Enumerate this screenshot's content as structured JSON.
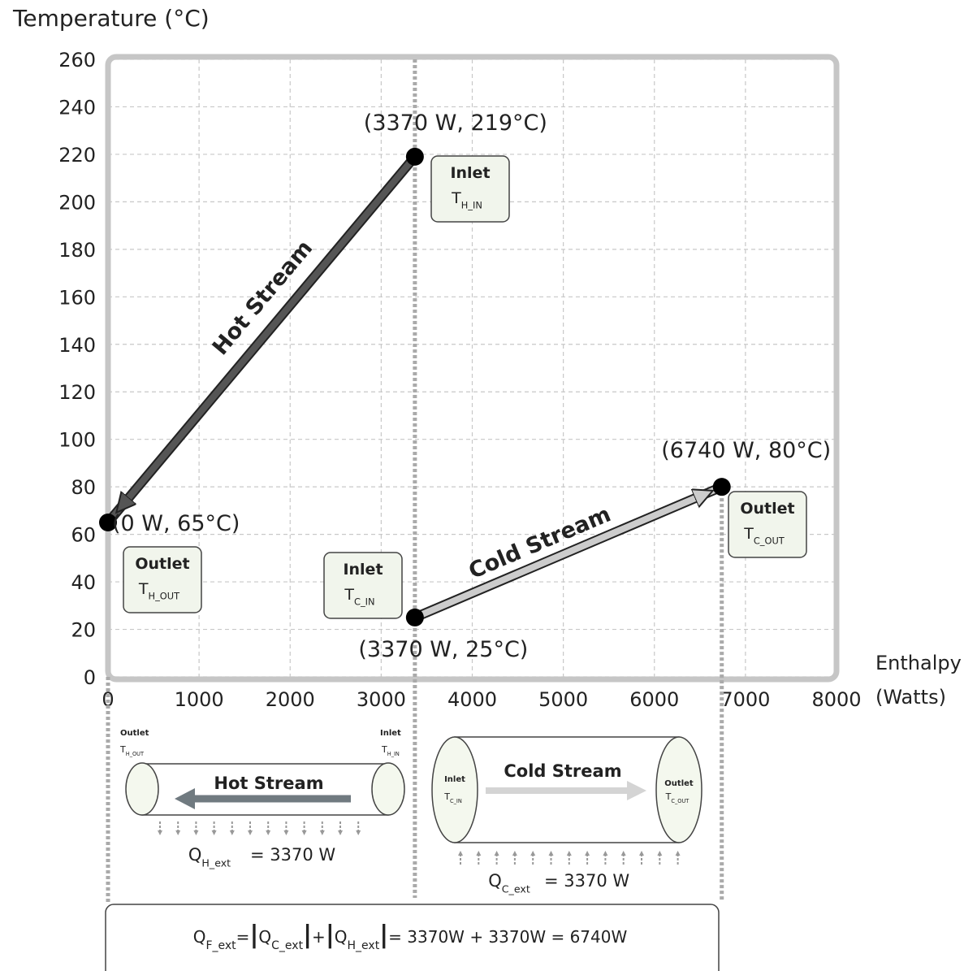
{
  "chart_data": {
    "type": "line",
    "y_label": "Temperature (°C)",
    "x_label_lines": [
      "Enthalpy",
      "(Watts)"
    ],
    "xlim": [
      0,
      8000
    ],
    "xticks": [
      0,
      1000,
      2000,
      3000,
      4000,
      5000,
      6000,
      7000,
      8000
    ],
    "ylim": [
      0,
      260
    ],
    "yticks": [
      0,
      20,
      40,
      60,
      80,
      100,
      120,
      140,
      160,
      180,
      200,
      220,
      240,
      260
    ],
    "grid": true,
    "series": [
      {
        "name": "Hot Stream",
        "color": "#555555",
        "x": [
          3370,
          0
        ],
        "values": [
          219,
          65
        ],
        "point_labels": [
          "(3370 W,  219°C)",
          "(0 W, 65°C)"
        ]
      },
      {
        "name": "Cold Stream",
        "color": "#cccccc",
        "x": [
          3370,
          6740
        ],
        "values": [
          25,
          80
        ],
        "point_labels": [
          "(3370 W, 25°C)",
          "(6740 W, 80°C)"
        ]
      }
    ],
    "annotations": [
      {
        "title": "Inlet",
        "symbol": "T",
        "subscript": "H_IN"
      },
      {
        "title": "Outlet",
        "symbol": "T",
        "subscript": "H_OUT"
      },
      {
        "title": "Inlet",
        "symbol": "T",
        "subscript": "C_IN"
      },
      {
        "title": "Outlet",
        "symbol": "T",
        "subscript": "C_OUT"
      }
    ]
  },
  "diagrams": {
    "hot": {
      "outlet_title": "Outlet",
      "outlet_symbol": "T",
      "outlet_sub": "H_OUT",
      "inlet_title": "Inlet",
      "inlet_symbol": "T",
      "inlet_sub": "H_IN",
      "label": "Hot Stream",
      "q_symbol": "Q",
      "q_sub": "H_ext",
      "q_value": "= 3370 W"
    },
    "cold": {
      "outlet_title": "Outlet",
      "outlet_symbol": "T",
      "outlet_sub": "C_OUT",
      "inlet_title": "Inlet",
      "inlet_symbol": "T",
      "inlet_sub": "C_IN",
      "label": "Cold Stream",
      "q_symbol": "Q",
      "q_sub": "C_ext",
      "q_value": "= 3370 W"
    }
  },
  "equation": {
    "parts": [
      {
        "text": "Q"
      },
      {
        "text": "F_ext",
        "sub": true
      },
      {
        "text": "="
      },
      {
        "text": "|"
      },
      {
        "text": "Q"
      },
      {
        "text": "C_ext",
        "sub": true
      },
      {
        "text": "|"
      },
      {
        "text": "+"
      },
      {
        "text": "|"
      },
      {
        "text": "Q"
      },
      {
        "text": "H_ext",
        "sub": true
      },
      {
        "text": "|"
      },
      {
        "text": "= 3370W  +  3370W  =  6740W"
      }
    ]
  }
}
